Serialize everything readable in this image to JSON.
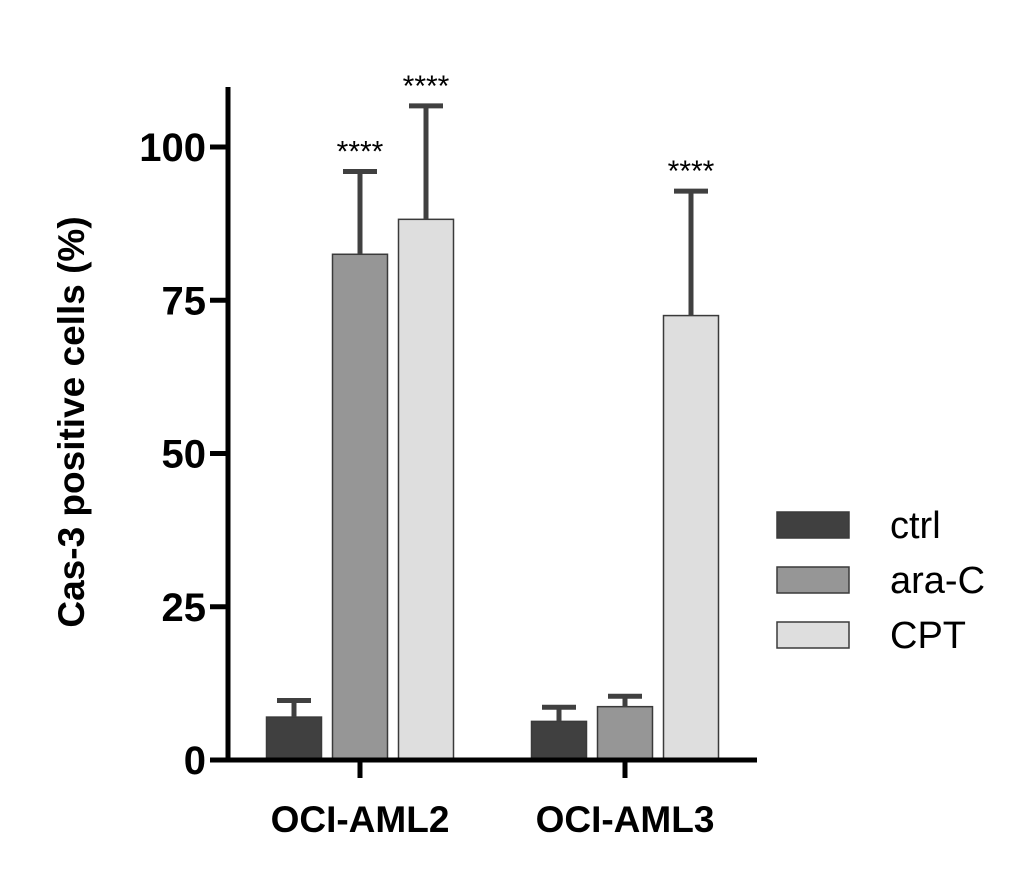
{
  "chart_data": {
    "type": "bar",
    "title": "",
    "xlabel": "",
    "ylabel": "Cas-3 positive cells  (%)",
    "ylim": [
      0,
      110
    ],
    "yticks": [
      0,
      25,
      50,
      75,
      100
    ],
    "ytick_labels": [
      "0",
      "25",
      "50",
      "75",
      "100"
    ],
    "categories": [
      "OCI-AML2",
      "OCI-AML3"
    ],
    "series": [
      {
        "name": "ctrl",
        "color": "#404040",
        "values": [
          7,
          6.3
        ],
        "errors": [
          2.7,
          2.3
        ],
        "significance": [
          "",
          ""
        ]
      },
      {
        "name": "ara-C",
        "color": "#969696",
        "values": [
          82.5,
          8.7
        ],
        "errors": [
          13.5,
          1.7
        ],
        "significance": [
          "****",
          ""
        ]
      },
      {
        "name": "CPT",
        "color": "#dedede",
        "values": [
          88.2,
          72.5
        ],
        "errors": [
          18.5,
          20.3
        ],
        "significance": [
          "****",
          "****"
        ]
      }
    ],
    "grid": false,
    "legend_position": "right"
  }
}
